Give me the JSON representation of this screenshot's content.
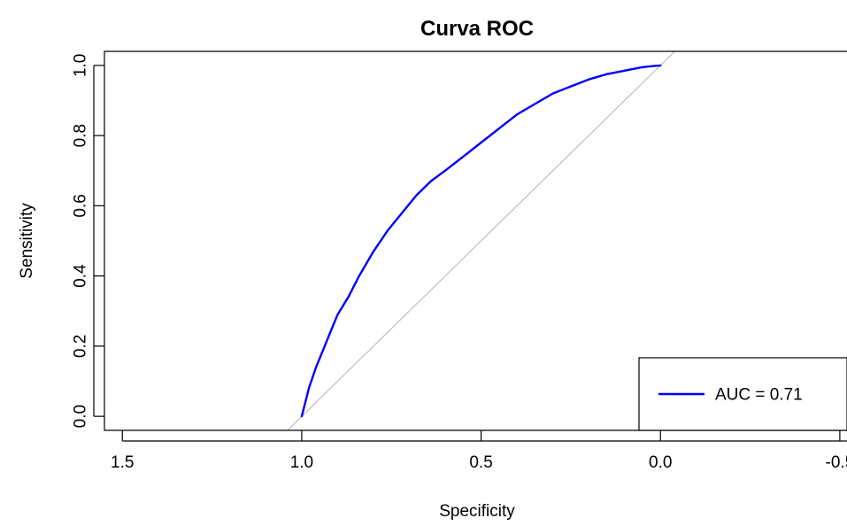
{
  "chart_data": {
    "type": "line",
    "title": "Curva ROC",
    "xlabel": "Specificity",
    "ylabel": "Sensitivity",
    "x_reversed": true,
    "xlim": [
      1.55,
      -0.52
    ],
    "ylim": [
      -0.04,
      1.04
    ],
    "x_ticks": [
      1.5,
      1.0,
      0.5,
      0.0,
      -0.5
    ],
    "x_tick_labels": [
      "1.5",
      "1.0",
      "0.5",
      "0.0",
      "-0.5"
    ],
    "y_ticks": [
      0.0,
      0.2,
      0.4,
      0.6,
      0.8,
      1.0
    ],
    "y_tick_labels": [
      "0.0",
      "0.2",
      "0.4",
      "0.6",
      "0.8",
      "1.0"
    ],
    "grid": false,
    "legend_position": "bottom-right",
    "series": [
      {
        "name": "AUC = 0.71",
        "color": "#0000ff",
        "x": [
          1.0,
          0.99,
          0.98,
          0.96,
          0.94,
          0.92,
          0.9,
          0.87,
          0.84,
          0.8,
          0.76,
          0.72,
          0.68,
          0.64,
          0.6,
          0.55,
          0.5,
          0.45,
          0.4,
          0.35,
          0.3,
          0.25,
          0.2,
          0.15,
          0.1,
          0.05,
          0.02,
          0.0
        ],
        "y": [
          0.0,
          0.04,
          0.08,
          0.14,
          0.19,
          0.24,
          0.29,
          0.34,
          0.4,
          0.47,
          0.53,
          0.58,
          0.63,
          0.67,
          0.7,
          0.74,
          0.78,
          0.82,
          0.86,
          0.89,
          0.92,
          0.94,
          0.96,
          0.975,
          0.985,
          0.995,
          0.998,
          1.0
        ]
      }
    ],
    "reference_line": {
      "from": [
        1.0,
        0.0
      ],
      "to": [
        0.0,
        1.0
      ],
      "color": "#bebebe"
    },
    "legend": {
      "entries": [
        {
          "label": "AUC = 0.71",
          "color": "#0000ff"
        }
      ]
    }
  }
}
